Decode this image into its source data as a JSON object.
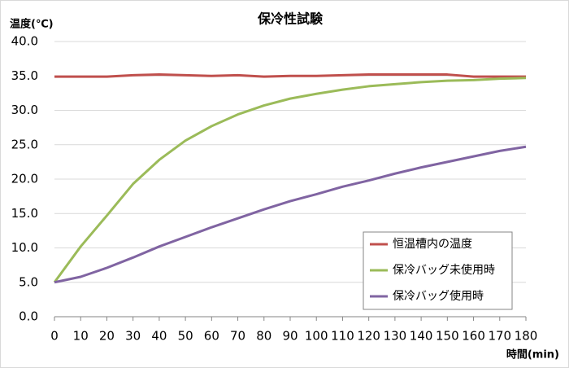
{
  "chart_data": {
    "type": "line",
    "title": "保冷性試験",
    "y_label": "温度(℃)",
    "x_label": "時間(min)",
    "x": [
      0,
      10,
      20,
      30,
      40,
      50,
      60,
      70,
      80,
      90,
      100,
      110,
      120,
      130,
      140,
      150,
      160,
      170,
      180
    ],
    "series": [
      {
        "name": "恒温槽内の温度",
        "color": "#c0504d",
        "values": [
          34.9,
          34.9,
          34.9,
          35.1,
          35.2,
          35.1,
          35.0,
          35.1,
          34.9,
          35.0,
          35.0,
          35.1,
          35.2,
          35.2,
          35.2,
          35.2,
          34.9,
          34.9,
          34.9
        ]
      },
      {
        "name": "保冷バッグ未使用時",
        "color": "#9bbb59",
        "values": [
          5.0,
          10.2,
          14.7,
          19.3,
          22.8,
          25.6,
          27.7,
          29.4,
          30.7,
          31.7,
          32.4,
          33.0,
          33.5,
          33.8,
          34.1,
          34.3,
          34.4,
          34.6,
          34.7
        ]
      },
      {
        "name": "保冷バッグ使用時",
        "color": "#8064a2",
        "values": [
          5.0,
          5.8,
          7.1,
          8.6,
          10.2,
          11.6,
          13.0,
          14.3,
          15.6,
          16.8,
          17.8,
          18.9,
          19.8,
          20.8,
          21.7,
          22.5,
          23.3,
          24.1,
          24.7
        ]
      }
    ],
    "xlim": [
      0,
      180
    ],
    "xticks": [
      0,
      10,
      20,
      30,
      40,
      50,
      60,
      70,
      80,
      90,
      100,
      110,
      120,
      130,
      140,
      150,
      160,
      170,
      180
    ],
    "ylim": [
      0,
      40
    ],
    "yticks": [
      {
        "value": 0,
        "label": "0.0"
      },
      {
        "value": 5,
        "label": "5.0"
      },
      {
        "value": 10,
        "label": "10.0"
      },
      {
        "value": 15,
        "label": "15.0"
      },
      {
        "value": 20,
        "label": "20.0"
      },
      {
        "value": 25,
        "label": "25.0"
      },
      {
        "value": 30,
        "label": "30.0"
      },
      {
        "value": 35,
        "label": "35.0"
      },
      {
        "value": 40,
        "label": "40.0"
      }
    ],
    "grid": true,
    "legend": "lower right"
  }
}
